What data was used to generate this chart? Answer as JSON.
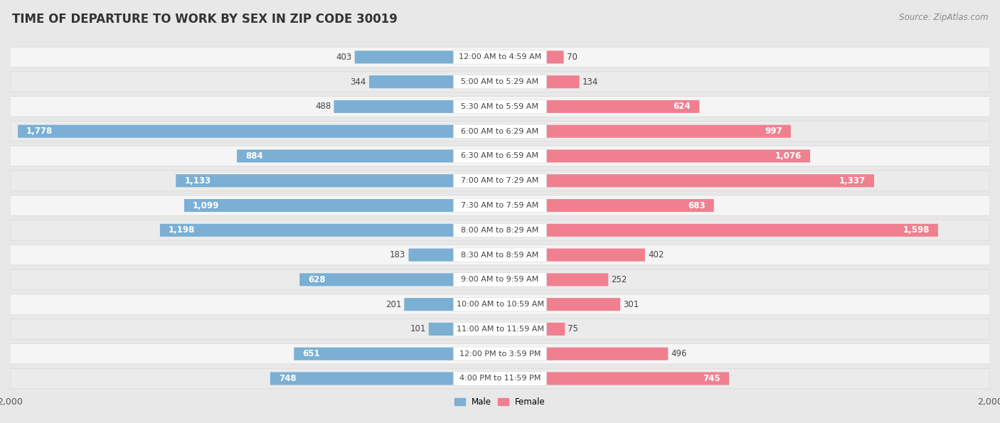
{
  "title": "TIME OF DEPARTURE TO WORK BY SEX IN ZIP CODE 30019",
  "source": "Source: ZipAtlas.com",
  "categories": [
    "12:00 AM to 4:59 AM",
    "5:00 AM to 5:29 AM",
    "5:30 AM to 5:59 AM",
    "6:00 AM to 6:29 AM",
    "6:30 AM to 6:59 AM",
    "7:00 AM to 7:29 AM",
    "7:30 AM to 7:59 AM",
    "8:00 AM to 8:29 AM",
    "8:30 AM to 8:59 AM",
    "9:00 AM to 9:59 AM",
    "10:00 AM to 10:59 AM",
    "11:00 AM to 11:59 AM",
    "12:00 PM to 3:59 PM",
    "4:00 PM to 11:59 PM"
  ],
  "male_values": [
    403,
    344,
    488,
    1778,
    884,
    1133,
    1099,
    1198,
    183,
    628,
    201,
    101,
    651,
    748
  ],
  "female_values": [
    70,
    134,
    624,
    997,
    1076,
    1337,
    683,
    1598,
    402,
    252,
    301,
    75,
    496,
    745
  ],
  "male_color": "#7bafd4",
  "female_color": "#f08090",
  "male_label": "Male",
  "female_label": "Female",
  "max_val": 2000,
  "bg_color": "#e8e8e8",
  "row_bg_even": "#f5f5f5",
  "row_bg_odd": "#ebebeb",
  "row_border_color": "#d8d8d8",
  "title_fontsize": 12,
  "label_fontsize": 8.5,
  "axis_fontsize": 9,
  "source_fontsize": 8.5,
  "cat_label_fontsize": 8,
  "inside_label_threshold": 600
}
